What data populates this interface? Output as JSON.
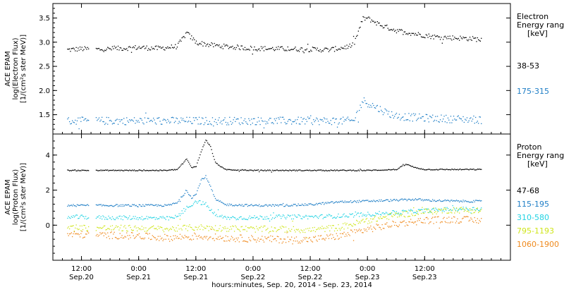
{
  "chart_data": [
    {
      "type": "scatter",
      "panel": "electron",
      "ylabel_lines": [
        "ACE EPAM",
        "log(Electron Flux)",
        "[1/(cm²s ster MeV)]"
      ],
      "ylim": [
        1.1,
        3.8
      ],
      "yticks": [
        1.5,
        2.0,
        2.5,
        3.0,
        3.5
      ],
      "ytick_labels": [
        "1.5",
        "2.0",
        "2.5",
        "3.0",
        "3.5"
      ],
      "legend_title": [
        "Electron",
        "Energy range",
        "[keV]"
      ],
      "series": [
        {
          "name": "38-53",
          "color": "#000000",
          "x": [
            -3,
            0,
            4,
            8,
            12,
            16,
            20,
            22,
            24,
            27,
            30,
            36,
            42,
            48,
            52,
            55,
            57,
            59,
            60,
            61,
            63,
            66,
            70,
            74,
            78,
            82,
            84
          ],
          "y": [
            2.85,
            2.87,
            2.86,
            2.88,
            2.9,
            2.88,
            2.92,
            3.2,
            3.0,
            2.95,
            2.92,
            2.88,
            2.87,
            2.86,
            2.85,
            2.9,
            2.95,
            3.5,
            3.5,
            3.45,
            3.35,
            3.25,
            3.18,
            3.12,
            3.1,
            3.08,
            3.06
          ],
          "noise": 0.05
        },
        {
          "name": "175-315",
          "color": "#1f7ec6",
          "x": [
            -3,
            0,
            6,
            12,
            18,
            24,
            30,
            36,
            42,
            48,
            52,
            55,
            57,
            59,
            60,
            62,
            64,
            66,
            70,
            74,
            78,
            82,
            84
          ],
          "y": [
            1.38,
            1.38,
            1.38,
            1.38,
            1.38,
            1.38,
            1.38,
            1.38,
            1.38,
            1.38,
            1.38,
            1.38,
            1.38,
            1.8,
            1.75,
            1.65,
            1.55,
            1.48,
            1.45,
            1.43,
            1.42,
            1.41,
            1.4
          ],
          "noise": 0.08
        }
      ]
    },
    {
      "type": "scatter",
      "panel": "proton",
      "ylabel_lines": [
        "ACE EPAM",
        "log(Proton Flux)",
        "[1/(cm²s ster MeV)]"
      ],
      "ylim": [
        -2,
        5.2
      ],
      "yticks": [
        0,
        2,
        4
      ],
      "ytick_labels": [
        "0",
        "2",
        "4"
      ],
      "legend_title": [
        "Proton",
        "Energy range",
        "[keV]"
      ],
      "series": [
        {
          "name": "47-68",
          "color": "#000000",
          "x": [
            -3,
            6,
            12,
            18,
            20,
            22,
            23,
            24,
            25,
            26,
            27,
            28,
            30,
            36,
            42,
            48,
            54,
            60,
            66,
            68,
            70,
            72,
            78,
            84
          ],
          "y": [
            3.15,
            3.15,
            3.15,
            3.15,
            3.2,
            3.8,
            3.3,
            3.4,
            4.2,
            4.9,
            4.5,
            3.6,
            3.2,
            3.15,
            3.15,
            3.15,
            3.15,
            3.15,
            3.2,
            3.5,
            3.3,
            3.2,
            3.2,
            3.2
          ],
          "noise": 0.03
        },
        {
          "name": "115-195",
          "color": "#1f7ec6",
          "x": [
            -3,
            6,
            12,
            18,
            20,
            22,
            23,
            24,
            25,
            26,
            27,
            28,
            30,
            36,
            42,
            48,
            54,
            60,
            66,
            70,
            72,
            78,
            84
          ],
          "y": [
            1.15,
            1.15,
            1.15,
            1.15,
            1.3,
            2.0,
            1.6,
            1.8,
            2.6,
            2.8,
            2.2,
            1.5,
            1.2,
            1.15,
            1.15,
            1.2,
            1.35,
            1.4,
            1.45,
            1.5,
            1.45,
            1.4,
            1.38
          ],
          "noise": 0.06
        },
        {
          "name": "310-580",
          "color": "#22d3e3",
          "x": [
            -3,
            6,
            12,
            18,
            20,
            22,
            24,
            26,
            27,
            28,
            30,
            36,
            42,
            48,
            54,
            60,
            66,
            72,
            78,
            84
          ],
          "y": [
            0.5,
            0.45,
            0.45,
            0.4,
            0.5,
            1.0,
            1.4,
            1.2,
            0.9,
            0.6,
            0.45,
            0.45,
            0.5,
            0.5,
            0.55,
            0.65,
            0.75,
            0.85,
            0.95,
            0.95
          ],
          "noise": 0.12
        },
        {
          "name": "795-1193",
          "color": "#cfe51b",
          "x": [
            -3,
            6,
            12,
            18,
            24,
            30,
            36,
            42,
            48,
            54,
            60,
            66,
            72,
            78,
            84
          ],
          "y": [
            -0.1,
            -0.15,
            -0.15,
            -0.2,
            -0.1,
            -0.15,
            -0.2,
            -0.2,
            -0.25,
            -0.1,
            0.3,
            0.6,
            0.8,
            0.9,
            0.85
          ],
          "noise": 0.18
        },
        {
          "name": "1060-1900",
          "color": "#ef8a1e",
          "x": [
            -3,
            6,
            12,
            18,
            24,
            30,
            36,
            42,
            48,
            54,
            60,
            66,
            72,
            78,
            84
          ],
          "y": [
            -0.5,
            -0.55,
            -0.6,
            -0.7,
            -0.6,
            -0.7,
            -0.75,
            -0.8,
            -0.8,
            -0.6,
            -0.2,
            0.1,
            0.3,
            0.35,
            0.3
          ],
          "noise": 0.2
        }
      ]
    }
  ],
  "x_axis": {
    "title": "hours:minutes, Sep. 20, 2014 - Sep. 23, 2014",
    "range_hours": [
      -6,
      90
    ],
    "ticks": [
      {
        "hours": 0,
        "time": "12:00",
        "date": "Sep.20"
      },
      {
        "hours": 12,
        "time": "0:00",
        "date": "Sep.21"
      },
      {
        "hours": 24,
        "time": "12:00",
        "date": "Sep.21"
      },
      {
        "hours": 36,
        "time": "0:00",
        "date": "Sep.22"
      },
      {
        "hours": 48,
        "time": "12:00",
        "date": "Sep.22"
      },
      {
        "hours": 60,
        "time": "0:00",
        "date": "Sep.23"
      },
      {
        "hours": 72,
        "time": "12:00",
        "date": "Sep.23"
      }
    ]
  }
}
